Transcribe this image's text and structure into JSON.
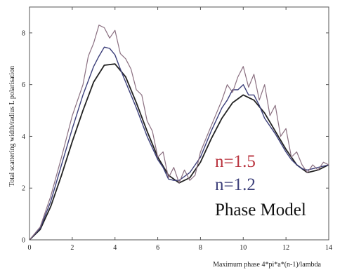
{
  "chart_data": {
    "type": "line",
    "title": "",
    "xlabel": "Maximum phase  4*pi*a*(n-1)/lambda",
    "ylabel": "Total scattering width/radius L polarisation",
    "xlim": [
      0,
      14
    ],
    "ylim": [
      0,
      9
    ],
    "xticks": [
      "0",
      "2",
      "4",
      "6",
      "8",
      "10",
      "12",
      "14"
    ],
    "yticks": [
      "0",
      "2",
      "4",
      "6",
      "8"
    ],
    "grid": false,
    "legend": {
      "position": "lower-right",
      "entries": [
        {
          "label": "n=1.5",
          "color": "#b9333e"
        },
        {
          "label": "n=1.2",
          "color": "#3c3f7a"
        },
        {
          "label": "Phase Model",
          "color": "#111111"
        }
      ]
    },
    "series": [
      {
        "name": "Phase Model",
        "color": "#222222",
        "x": [
          0,
          0.5,
          1.0,
          1.5,
          2.0,
          2.5,
          3.0,
          3.5,
          4.0,
          4.5,
          5.0,
          5.5,
          6.0,
          6.5,
          7.0,
          7.5,
          8.0,
          8.5,
          9.0,
          9.5,
          10.0,
          10.5,
          11.0,
          11.5,
          12.0,
          12.5,
          13.0,
          13.5,
          14.0
        ],
        "y": [
          0,
          0.4,
          1.3,
          2.5,
          3.8,
          5.0,
          6.1,
          6.75,
          6.8,
          6.3,
          5.3,
          4.2,
          3.2,
          2.5,
          2.2,
          2.4,
          3.0,
          3.9,
          4.7,
          5.3,
          5.6,
          5.4,
          4.9,
          4.2,
          3.5,
          2.9,
          2.6,
          2.7,
          2.9
        ]
      },
      {
        "name": "n=1.2",
        "color": "#3c3f7a",
        "x": [
          0,
          0.5,
          1.0,
          1.5,
          2.0,
          2.5,
          3.0,
          3.25,
          3.5,
          3.75,
          4.0,
          4.25,
          4.5,
          5.0,
          5.5,
          6.0,
          6.25,
          6.5,
          6.75,
          7.0,
          7.5,
          8.0,
          8.5,
          9.0,
          9.25,
          9.5,
          9.75,
          10.0,
          10.25,
          10.5,
          10.75,
          11.0,
          11.5,
          12.0,
          12.25,
          12.5,
          12.75,
          13.0,
          13.25,
          13.5,
          13.75,
          14.0
        ],
        "y": [
          0,
          0.45,
          1.5,
          2.9,
          4.3,
          5.6,
          6.7,
          7.1,
          7.45,
          7.4,
          7.15,
          6.6,
          6.1,
          5.1,
          4.0,
          3.1,
          2.8,
          2.35,
          2.3,
          2.3,
          2.6,
          3.2,
          4.2,
          5.1,
          5.4,
          5.8,
          5.8,
          6.0,
          5.6,
          5.6,
          5.2,
          4.7,
          4.1,
          3.4,
          3.1,
          2.9,
          2.75,
          2.7,
          2.75,
          2.8,
          2.85,
          2.9
        ]
      },
      {
        "name": "n=1.5",
        "color": "#8a6f80",
        "x": [
          0,
          0.5,
          1.0,
          1.5,
          2.0,
          2.5,
          2.75,
          3.0,
          3.25,
          3.5,
          3.75,
          4.0,
          4.25,
          4.5,
          4.75,
          5.0,
          5.25,
          5.5,
          5.75,
          6.0,
          6.25,
          6.5,
          6.75,
          7.0,
          7.25,
          7.5,
          7.75,
          8.0,
          8.5,
          9.0,
          9.25,
          9.5,
          9.75,
          10.0,
          10.25,
          10.5,
          10.75,
          11.0,
          11.25,
          11.5,
          11.75,
          12.0,
          12.25,
          12.5,
          12.75,
          13.0,
          13.25,
          13.5,
          13.75,
          14.0
        ],
        "y": [
          0,
          0.5,
          1.7,
          3.2,
          4.8,
          6.0,
          7.1,
          7.6,
          8.3,
          8.2,
          7.8,
          8.1,
          7.2,
          7.0,
          6.6,
          5.8,
          5.6,
          4.6,
          4.2,
          3.2,
          3.4,
          2.4,
          2.8,
          2.2,
          2.7,
          2.3,
          2.5,
          3.4,
          4.4,
          5.4,
          6.0,
          5.7,
          6.3,
          6.7,
          5.9,
          6.4,
          5.4,
          6.0,
          4.8,
          5.2,
          4.0,
          4.3,
          3.2,
          3.4,
          2.9,
          2.6,
          2.9,
          2.7,
          3.0,
          2.9
        ]
      }
    ]
  }
}
